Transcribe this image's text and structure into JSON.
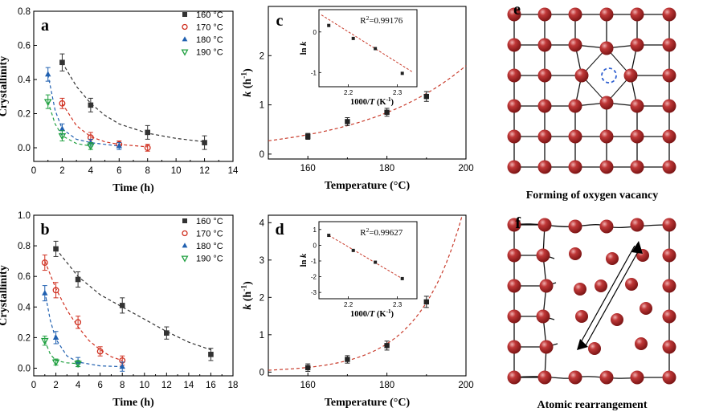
{
  "chart_data": [
    {
      "id": "a",
      "panel_label": "a",
      "type": "scatter",
      "xlabel": "Time (h)",
      "ylabel": "Crystallinity",
      "xlim": [
        0,
        14
      ],
      "ylim": [
        -0.08,
        0.8
      ],
      "xticks": [
        "0",
        "2",
        "4",
        "6",
        "8",
        "10",
        "12",
        "14"
      ],
      "yticks": [
        "0.0",
        "0.2",
        "0.4",
        "0.6",
        "0.8"
      ],
      "legend": [
        "160 °C",
        "170 °C",
        "180 °C",
        "190 °C"
      ],
      "series": [
        {
          "name": "160 °C",
          "marker": "square",
          "color": "#333333",
          "x": [
            2,
            4,
            8,
            12
          ],
          "y": [
            0.5,
            0.25,
            0.09,
            0.03
          ],
          "err": [
            0.05,
            0.04,
            0.04,
            0.04
          ],
          "fit": [
            [
              2,
              0.5
            ],
            [
              3,
              0.36
            ],
            [
              4,
              0.26
            ],
            [
              5,
              0.19
            ],
            [
              6,
              0.14
            ],
            [
              8,
              0.085
            ],
            [
              10,
              0.055
            ],
            [
              12,
              0.035
            ]
          ]
        },
        {
          "name": "170 °C",
          "marker": "circle",
          "color": "#d03020",
          "x": [
            2,
            4,
            6,
            8
          ],
          "y": [
            0.26,
            0.06,
            0.02,
            0.0
          ],
          "err": [
            0.03,
            0.03,
            0.02,
            0.02
          ],
          "fit": [
            [
              2,
              0.26
            ],
            [
              3,
              0.13
            ],
            [
              4,
              0.065
            ],
            [
              5,
              0.035
            ],
            [
              6,
              0.02
            ],
            [
              8,
              0.005
            ]
          ]
        },
        {
          "name": "180 °C",
          "marker": "triangle",
          "color": "#2060b0",
          "x": [
            1,
            2,
            4,
            6
          ],
          "y": [
            0.43,
            0.11,
            0.03,
            0.01
          ],
          "err": [
            0.04,
            0.03,
            0.02,
            0.02
          ],
          "fit": [
            [
              1,
              0.43
            ],
            [
              1.5,
              0.22
            ],
            [
              2,
              0.11
            ],
            [
              3,
              0.05
            ],
            [
              4,
              0.03
            ],
            [
              6,
              0.01
            ]
          ]
        },
        {
          "name": "190 °C",
          "marker": "triangle-down",
          "color": "#20a040",
          "x": [
            1,
            2,
            4
          ],
          "y": [
            0.27,
            0.07,
            0.01
          ],
          "err": [
            0.04,
            0.03,
            0.02
          ],
          "fit": [
            [
              1,
              0.27
            ],
            [
              1.5,
              0.14
            ],
            [
              2,
              0.07
            ],
            [
              3,
              0.025
            ],
            [
              4,
              0.01
            ]
          ]
        }
      ]
    },
    {
      "id": "b",
      "panel_label": "b",
      "type": "scatter",
      "xlabel": "Time (h)",
      "ylabel": "Crystallinity",
      "xlim": [
        0,
        18
      ],
      "ylim": [
        -0.05,
        1.0
      ],
      "xticks": [
        "0",
        "2",
        "4",
        "6",
        "8",
        "10",
        "12",
        "14",
        "16",
        "18"
      ],
      "yticks": [
        "0.0",
        "0.2",
        "0.4",
        "0.6",
        "0.8",
        "1.0"
      ],
      "legend": [
        "160 °C",
        "170 °C",
        "180 °C",
        "190 °C"
      ],
      "series": [
        {
          "name": "160 °C",
          "marker": "square",
          "color": "#333333",
          "x": [
            2,
            4,
            8,
            12,
            16
          ],
          "y": [
            0.78,
            0.58,
            0.41,
            0.23,
            0.09
          ],
          "err": [
            0.05,
            0.05,
            0.05,
            0.04,
            0.04
          ],
          "fit": [
            [
              2,
              0.78
            ],
            [
              4,
              0.6
            ],
            [
              6,
              0.48
            ],
            [
              8,
              0.4
            ],
            [
              10,
              0.32
            ],
            [
              12,
              0.24
            ],
            [
              14,
              0.17
            ],
            [
              16,
              0.12
            ]
          ]
        },
        {
          "name": "170 °C",
          "marker": "circle",
          "color": "#d03020",
          "x": [
            1,
            2,
            4,
            6,
            8
          ],
          "y": [
            0.69,
            0.51,
            0.3,
            0.11,
            0.05
          ],
          "err": [
            0.05,
            0.05,
            0.04,
            0.03,
            0.03
          ],
          "fit": [
            [
              1,
              0.7
            ],
            [
              2,
              0.52
            ],
            [
              3,
              0.38
            ],
            [
              4,
              0.27
            ],
            [
              5,
              0.18
            ],
            [
              6,
              0.12
            ],
            [
              7,
              0.075
            ],
            [
              8,
              0.05
            ]
          ]
        },
        {
          "name": "180 °C",
          "marker": "triangle",
          "color": "#2060b0",
          "x": [
            1,
            2,
            4,
            8
          ],
          "y": [
            0.49,
            0.2,
            0.04,
            0.01
          ],
          "err": [
            0.05,
            0.04,
            0.03,
            0.03
          ],
          "fit": [
            [
              1,
              0.5
            ],
            [
              1.5,
              0.31
            ],
            [
              2,
              0.19
            ],
            [
              3,
              0.08
            ],
            [
              4,
              0.04
            ],
            [
              6,
              0.015
            ],
            [
              8,
              0.01
            ]
          ]
        },
        {
          "name": "190 °C",
          "marker": "triangle-down",
          "color": "#20a040",
          "x": [
            1,
            2,
            4
          ],
          "y": [
            0.18,
            0.04,
            0.03
          ],
          "err": [
            0.03,
            0.02,
            0.02
          ],
          "fit": [
            [
              1,
              0.18
            ],
            [
              1.5,
              0.09
            ],
            [
              2,
              0.05
            ],
            [
              3,
              0.035
            ],
            [
              4,
              0.03
            ]
          ]
        }
      ]
    },
    {
      "id": "c",
      "panel_label": "c",
      "type": "scatter",
      "xlabel": "Temperature (°C)",
      "ylabel": "k (h-1)",
      "ylabel_parts": [
        "k",
        " (h",
        "-1",
        ")"
      ],
      "xlim": [
        150,
        200
      ],
      "ylim": [
        -0.1,
        3.0
      ],
      "xticks": [
        "160",
        "180",
        "200"
      ],
      "yticks": [
        "0",
        "1",
        "2"
      ],
      "points": {
        "x": [
          160,
          170,
          180,
          190
        ],
        "y": [
          0.36,
          0.66,
          0.85,
          1.17
        ],
        "err": [
          0.06,
          0.08,
          0.08,
          0.1
        ]
      },
      "fit": {
        "a": 1.3e-09,
        "Ea_over_R": 8400
      },
      "inset": {
        "xlabel": "1000/T (K-1)",
        "xlabel_parts": [
          "1000/",
          "T",
          " (K",
          "-1",
          ")"
        ],
        "ylabel": "ln k",
        "ylabel_parts": [
          "ln ",
          "k"
        ],
        "annotation": "R2=0.99176",
        "annotation_parts": [
          "R",
          "2",
          "=0.99176"
        ],
        "xlim": [
          2.14,
          2.34
        ],
        "ylim": [
          -1.35,
          0.55
        ],
        "xticks": [
          "2.2",
          "2.3"
        ],
        "yticks": [
          "0",
          "-1"
        ],
        "x": [
          2.16,
          2.21,
          2.255,
          2.31
        ],
        "y": [
          0.16,
          -0.16,
          -0.41,
          -1.02
        ],
        "fit_line": [
          [
            2.145,
            0.42
          ],
          [
            2.33,
            -0.98
          ]
        ]
      }
    },
    {
      "id": "d",
      "panel_label": "d",
      "type": "scatter",
      "xlabel": "Temperature (°C)",
      "ylabel": "k (h-1)",
      "ylabel_parts": [
        "k",
        " (h",
        "-1",
        ")"
      ],
      "xlim": [
        150,
        200
      ],
      "ylim": [
        -0.1,
        4.2
      ],
      "xticks": [
        "160",
        "180",
        "200"
      ],
      "yticks": [
        "0",
        "1",
        "2",
        "3",
        "4"
      ],
      "points": {
        "x": [
          160,
          170,
          180,
          190
        ],
        "y": [
          0.12,
          0.34,
          0.71,
          1.88
        ],
        "err": [
          0.1,
          0.1,
          0.12,
          0.15
        ]
      },
      "fit": {
        "a": 3.3e-36,
        "Ea_over_R": 35840
      },
      "inset": {
        "xlabel": "1000/T (K-1)",
        "xlabel_parts": [
          "1000/",
          "T",
          " (K",
          "-1",
          ")"
        ],
        "ylabel": "ln k",
        "ylabel_parts": [
          "ln ",
          "k"
        ],
        "annotation": "R2=0.99627",
        "annotation_parts": [
          "R",
          "2",
          "=0.99627"
        ],
        "xlim": [
          2.14,
          2.34
        ],
        "ylim": [
          -3.4,
          1.5
        ],
        "xticks": [
          "2.2",
          "2.3"
        ],
        "yticks": [
          "1",
          "0",
          "-1",
          "-2",
          "-3"
        ],
        "x": [
          2.16,
          2.21,
          2.255,
          2.31
        ],
        "y": [
          0.63,
          -0.33,
          -1.08,
          -2.12
        ],
        "fit_line": [
          [
            2.16,
            0.63
          ],
          [
            2.31,
            -2.12
          ]
        ]
      }
    }
  ],
  "schematics": [
    {
      "panel_label": "e",
      "caption": "Forming of oxygen vacancy"
    },
    {
      "panel_label": "f",
      "caption": "Atomic rearrangement"
    }
  ],
  "colors": {
    "atom": "#b02a2a",
    "atom_highlight": "#e8a0a0",
    "vacancy": "#3060d0",
    "fit_c": "#c83a2a"
  }
}
